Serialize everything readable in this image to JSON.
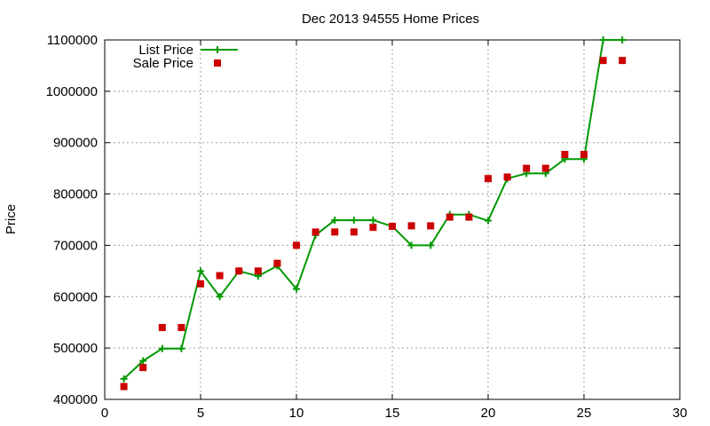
{
  "chart_data": {
    "type": "line",
    "title": "Dec 2013 94555 Home Prices",
    "xlabel": "",
    "ylabel": "Price",
    "xlim": [
      0,
      30
    ],
    "ylim": [
      400000,
      1100000
    ],
    "x_ticks": [
      0,
      5,
      10,
      15,
      20,
      25,
      30
    ],
    "y_ticks": [
      400000,
      500000,
      600000,
      700000,
      800000,
      900000,
      1000000,
      1100000
    ],
    "x_tick_labels": [
      "0",
      "5",
      "10",
      "15",
      "20",
      "25",
      "30"
    ],
    "y_tick_labels": [
      "400000",
      "500000",
      "600000",
      "700000",
      "800000",
      "900000",
      "1000000",
      "1100000"
    ],
    "grid": true,
    "legend_position": "top-left",
    "series": [
      {
        "name": "List Price",
        "style": "line-with-plus",
        "color": "#009900",
        "points": [
          [
            1,
            440000
          ],
          [
            2,
            475000
          ],
          [
            3,
            499000
          ],
          [
            4,
            499000
          ],
          [
            5,
            650000
          ],
          [
            6,
            600000
          ],
          [
            7,
            650000
          ],
          [
            8,
            640000
          ],
          [
            9,
            660000
          ],
          [
            10,
            615000
          ],
          [
            11,
            720000
          ],
          [
            12,
            749000
          ],
          [
            13,
            749000
          ],
          [
            14,
            749000
          ],
          [
            15,
            737000
          ],
          [
            16,
            700000
          ],
          [
            17,
            700000
          ],
          [
            18,
            760000
          ],
          [
            19,
            760000
          ],
          [
            20,
            748000
          ],
          [
            21,
            830000
          ],
          [
            22,
            840000
          ],
          [
            23,
            840000
          ],
          [
            24,
            868000
          ],
          [
            25,
            868000
          ],
          [
            26,
            1100000
          ],
          [
            27,
            1100000
          ]
        ]
      },
      {
        "name": "Sale Price",
        "style": "square-markers",
        "color": "#cc0000",
        "points": [
          [
            1,
            425000
          ],
          [
            2,
            462000
          ],
          [
            3,
            540000
          ],
          [
            4,
            540000
          ],
          [
            5,
            625000
          ],
          [
            6,
            641000
          ],
          [
            7,
            650000
          ],
          [
            8,
            650000
          ],
          [
            9,
            665000
          ],
          [
            10,
            700000
          ],
          [
            11,
            726000
          ],
          [
            12,
            726000
          ],
          [
            13,
            726000
          ],
          [
            14,
            735000
          ],
          [
            15,
            737000
          ],
          [
            16,
            738000
          ],
          [
            17,
            738000
          ],
          [
            18,
            755000
          ],
          [
            19,
            755000
          ],
          [
            20,
            830000
          ],
          [
            21,
            833000
          ],
          [
            22,
            850000
          ],
          [
            23,
            850000
          ],
          [
            24,
            877000
          ],
          [
            25,
            877000
          ],
          [
            26,
            1060000
          ],
          [
            27,
            1060000
          ]
        ]
      }
    ]
  }
}
